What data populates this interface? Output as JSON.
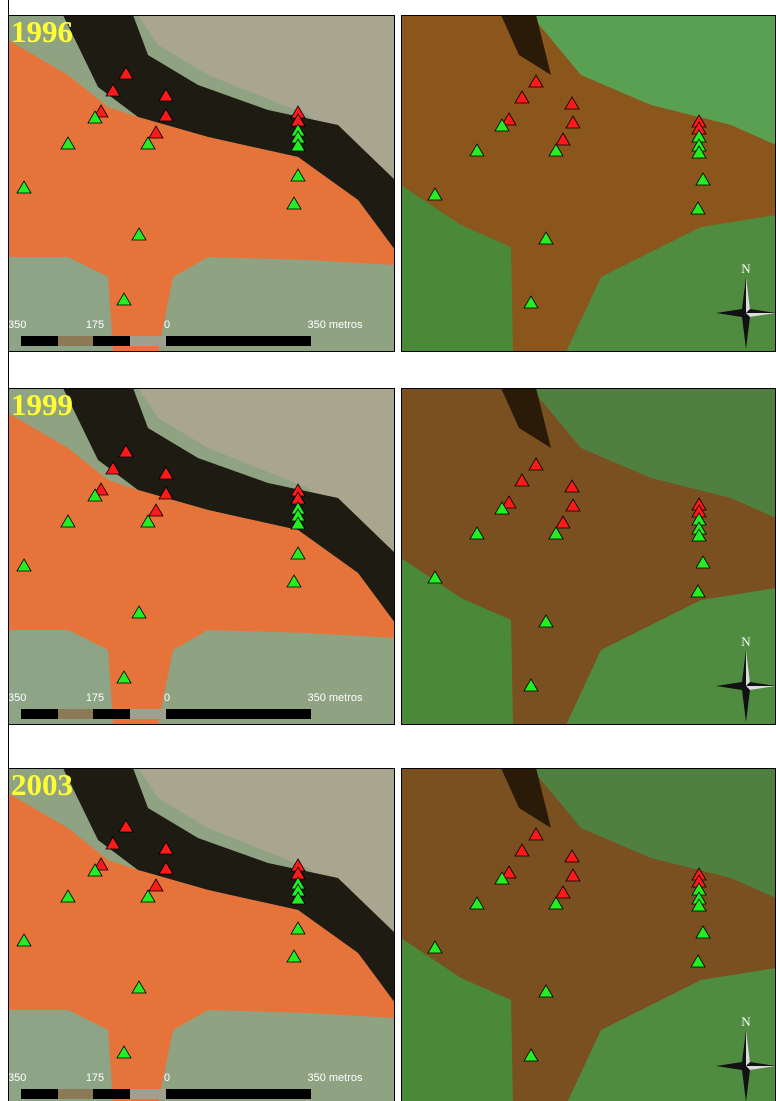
{
  "panels": [
    {
      "year": "1996"
    },
    {
      "year": "1999"
    },
    {
      "year": "2003"
    }
  ],
  "scale_bar": {
    "labels": [
      "350",
      "175",
      "0",
      "350 metros"
    ]
  },
  "north": "N"
}
